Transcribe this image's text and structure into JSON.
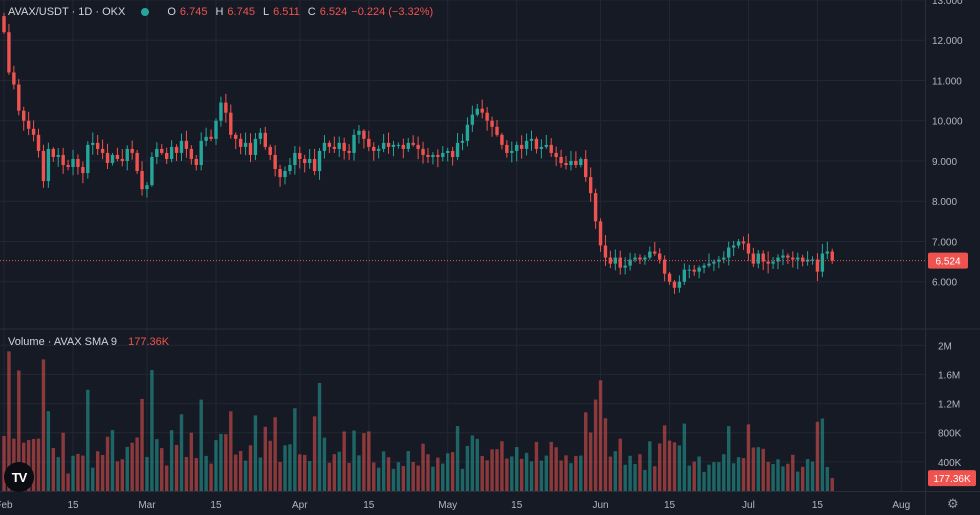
{
  "legend": {
    "symbol": "AVAX/USDT · 1D · OKX",
    "open_label": "O",
    "open": "6.745",
    "high_label": "H",
    "high": "6.745",
    "low_label": "L",
    "low": "6.511",
    "close_label": "C",
    "close": "6.524",
    "change": "−0.224 (−3.32%)"
  },
  "volume_legend": {
    "label": "Volume · AVAX",
    "sma": "SMA 9",
    "value": "177.36K"
  },
  "logo_text": "TV",
  "chart_data": {
    "type": "candlestick",
    "price_axis": {
      "ticks": [
        6,
        7,
        8,
        9,
        10,
        11,
        12,
        13
      ],
      "tick_labels": [
        "6.000",
        "7.000",
        "8.000",
        "9.000",
        "10.000",
        "11.000",
        "12.000",
        "13.000"
      ],
      "range": [
        4.85,
        13.0
      ],
      "last_price_label": "6.524",
      "last_price": 6.524
    },
    "volume_axis": {
      "ticks": [
        400000,
        800000,
        1200000,
        1600000,
        2000000
      ],
      "tick_labels": [
        "400K",
        "800K",
        "1.2M",
        "1.6M",
        "2M"
      ],
      "range": [
        0,
        2100000
      ],
      "last_volume_label": "177.36K",
      "last_volume": 177360
    },
    "time_axis": {
      "labels": [
        "Feb",
        "15",
        "Mar",
        "15",
        "Apr",
        "15",
        "May",
        "15",
        "Jun",
        "15",
        "Jul",
        "15",
        "Aug"
      ],
      "label_days": [
        0,
        14,
        29,
        43,
        60,
        74,
        90,
        104,
        121,
        135,
        151,
        165,
        182
      ]
    },
    "start_date": "2024-02-01",
    "closes": [
      12.2,
      11.2,
      10.9,
      10.25,
      10.0,
      9.8,
      9.65,
      9.25,
      8.5,
      9.3,
      9.1,
      9.15,
      8.9,
      8.85,
      9.05,
      8.85,
      8.7,
      9.4,
      9.45,
      9.3,
      9.2,
      8.95,
      9.15,
      9.05,
      9.0,
      9.3,
      9.2,
      8.75,
      8.3,
      8.4,
      9.1,
      9.3,
      9.2,
      9.05,
      9.35,
      9.2,
      9.5,
      9.3,
      9.05,
      8.9,
      9.5,
      9.6,
      9.55,
      10.0,
      10.45,
      10.2,
      9.65,
      9.55,
      9.35,
      9.45,
      9.15,
      9.55,
      9.7,
      9.35,
      9.15,
      8.8,
      8.6,
      8.75,
      8.9,
      9.2,
      9.05,
      8.95,
      9.05,
      8.75,
      9.25,
      9.45,
      9.35,
      9.3,
      9.45,
      9.25,
      9.2,
      9.65,
      9.75,
      9.55,
      9.35,
      9.25,
      9.3,
      9.45,
      9.35,
      9.4,
      9.4,
      9.3,
      9.45,
      9.4,
      9.3,
      9.15,
      9.1,
      9.15,
      9.1,
      9.2,
      9.25,
      9.1,
      9.45,
      9.5,
      9.9,
      10.15,
      10.3,
      10.2,
      10.0,
      9.85,
      9.65,
      9.4,
      9.2,
      9.25,
      9.4,
      9.3,
      9.5,
      9.55,
      9.3,
      9.35,
      9.4,
      9.2,
      9.1,
      8.95,
      8.9,
      9.0,
      8.9,
      9.05,
      8.6,
      8.2,
      7.5,
      6.9,
      6.6,
      6.45,
      6.6,
      6.35,
      6.4,
      6.55,
      6.6,
      6.55,
      6.6,
      6.75,
      6.7,
      6.55,
      6.2,
      6.0,
      5.85,
      6.0,
      6.3,
      6.3,
      6.25,
      6.35,
      6.4,
      6.45,
      6.5,
      6.55,
      6.6,
      6.85,
      6.9,
      7.0,
      6.95,
      6.7,
      6.45,
      6.7,
      6.5,
      6.45,
      6.5,
      6.6,
      6.65,
      6.6,
      6.55,
      6.6,
      6.5,
      6.55,
      6.55,
      6.25,
      6.7,
      6.75,
      6.524
    ]
  }
}
